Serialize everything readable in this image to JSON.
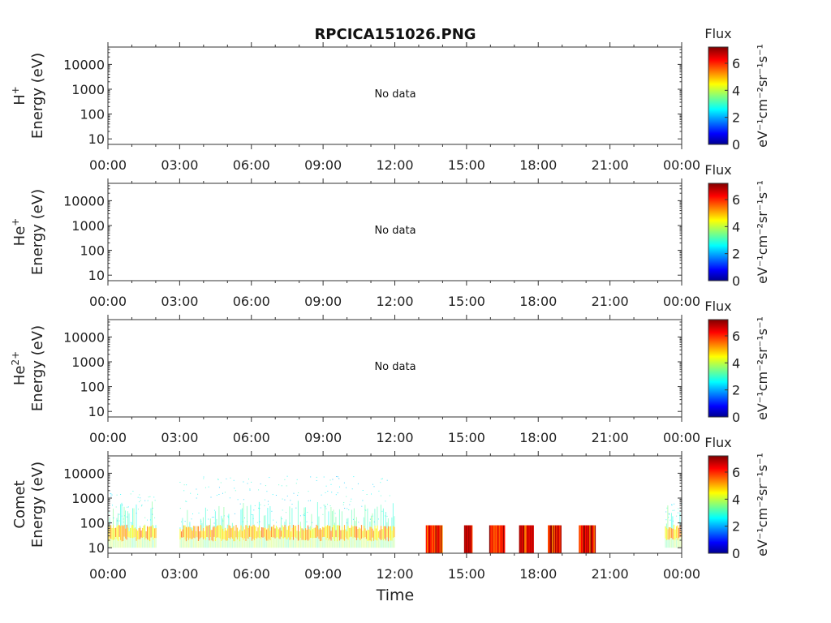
{
  "chart_data": {
    "type": "heatmap",
    "title": "RPCICA151026.PNG",
    "xlabel": "Time",
    "x_ticks": [
      "00:00",
      "03:00",
      "06:00",
      "09:00",
      "12:00",
      "15:00",
      "18:00",
      "21:00",
      "00:00"
    ],
    "y_ticks": [
      "10",
      "100",
      "1000",
      "10000"
    ],
    "y_scale": "log",
    "ylim": [
      6,
      50000
    ],
    "colorbar": {
      "label_top": "Flux",
      "units": "eV⁻¹cm⁻²sr⁻¹s⁻¹",
      "ticks": [
        "0",
        "2",
        "4",
        "6"
      ],
      "range": [
        0,
        7.2
      ],
      "colormap": "jet"
    },
    "panels": [
      {
        "id": "h",
        "ylabel_species": "H",
        "ylabel_sup": "+",
        "ylabel_energy": "Energy (eV)",
        "note": "No data",
        "data": []
      },
      {
        "id": "he",
        "ylabel_species": "He",
        "ylabel_sup": "+",
        "ylabel_energy": "Energy (eV)",
        "note": "No data",
        "data": []
      },
      {
        "id": "he2",
        "ylabel_species": "He",
        "ylabel_sup": "2+",
        "ylabel_energy": "Energy (eV)",
        "note": "No data",
        "data": []
      },
      {
        "id": "comet",
        "ylabel_species": "Comet",
        "ylabel_sup": "",
        "ylabel_energy": "Energy (eV)",
        "note": "",
        "continuous_segments": [
          {
            "start_h": 0.0,
            "end_h": 2.0,
            "scatter_top": 2000
          },
          {
            "start_h": 3.0,
            "end_h": 12.0,
            "scatter_top": 8000
          },
          {
            "start_h": 23.3,
            "end_h": 24.0,
            "scatter_top": 700
          }
        ],
        "intense_blocks": [
          {
            "start_h": 13.3,
            "end_h": 14.0,
            "energy_low": 6,
            "energy_high": 80
          },
          {
            "start_h": 14.9,
            "end_h": 15.25,
            "energy_low": 6,
            "energy_high": 80
          },
          {
            "start_h": 15.95,
            "end_h": 16.6,
            "energy_low": 6,
            "energy_high": 80
          },
          {
            "start_h": 17.2,
            "end_h": 17.8,
            "energy_low": 6,
            "energy_high": 80
          },
          {
            "start_h": 18.4,
            "end_h": 18.95,
            "energy_low": 6,
            "energy_high": 80
          },
          {
            "start_h": 19.7,
            "end_h": 20.4,
            "energy_low": 6,
            "energy_high": 80
          }
        ]
      }
    ]
  }
}
